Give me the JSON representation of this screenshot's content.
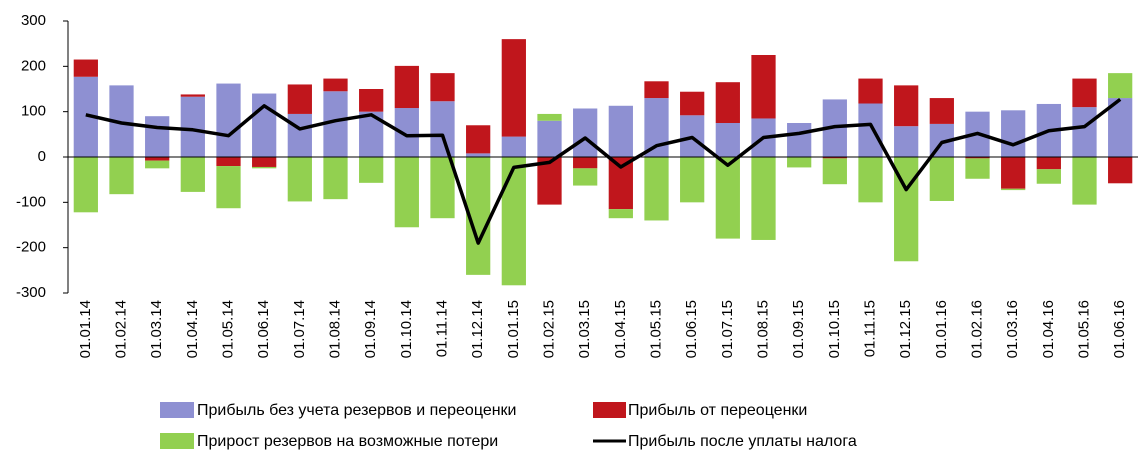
{
  "chart_data": {
    "type": "bar",
    "stacked": true,
    "categories": [
      "01.01.14",
      "01.02.14",
      "01.03.14",
      "01.04.14",
      "01.05.14",
      "01.06.14",
      "01.07.14",
      "01.08.14",
      "01.09.14",
      "01.10.14",
      "01.11.14",
      "01.12.14",
      "01.01.15",
      "01.02.15",
      "01.03.15",
      "01.04.15",
      "01.05.15",
      "01.06.15",
      "01.07.15",
      "01.08.15",
      "01.09.15",
      "01.10.15",
      "01.11.15",
      "01.12.15",
      "01.01.16",
      "01.02.16",
      "01.03.16",
      "01.04.16",
      "01.05.16",
      "01.06.16"
    ],
    "series": [
      {
        "name": "Прибыль без учета резервов и переоценки",
        "color": "#8e90d2",
        "values": [
          177,
          158,
          90,
          133,
          162,
          140,
          95,
          145,
          100,
          108,
          123,
          8,
          45,
          80,
          107,
          113,
          130,
          92,
          75,
          85,
          75,
          127,
          118,
          68,
          73,
          100,
          103,
          117,
          110,
          130
        ]
      },
      {
        "name": "Прибыль от переоценки",
        "color": "#c0161c",
        "values": [
          38,
          0,
          -8,
          5,
          -20,
          -22,
          65,
          28,
          50,
          93,
          62,
          62,
          215,
          -105,
          -25,
          -115,
          37,
          52,
          90,
          140,
          0,
          -3,
          55,
          90,
          57,
          -3,
          -70,
          -27,
          63,
          -58
        ]
      },
      {
        "name": "Прирост резервов на возможные потери",
        "color": "#92d050",
        "values": [
          -122,
          -82,
          -17,
          -77,
          -93,
          -3,
          -98,
          -93,
          -57,
          -155,
          -135,
          -260,
          -283,
          15,
          -38,
          -20,
          -140,
          -100,
          -180,
          -183,
          -23,
          -57,
          -100,
          -230,
          -97,
          -45,
          -3,
          -32,
          -105,
          55
        ]
      },
      {
        "name": "Прибыль после уплаты налога",
        "color": "#000000",
        "type": "line",
        "values": [
          93,
          75,
          65,
          60,
          47,
          113,
          62,
          80,
          93,
          47,
          48,
          -190,
          -23,
          -12,
          42,
          -22,
          25,
          43,
          -18,
          43,
          52,
          67,
          72,
          -72,
          32,
          52,
          27,
          58,
          67,
          127
        ]
      }
    ],
    "ylim": [
      -300,
      300
    ],
    "yticks": [
      -300,
      -200,
      -100,
      0,
      100,
      200,
      300
    ],
    "grid": false
  }
}
